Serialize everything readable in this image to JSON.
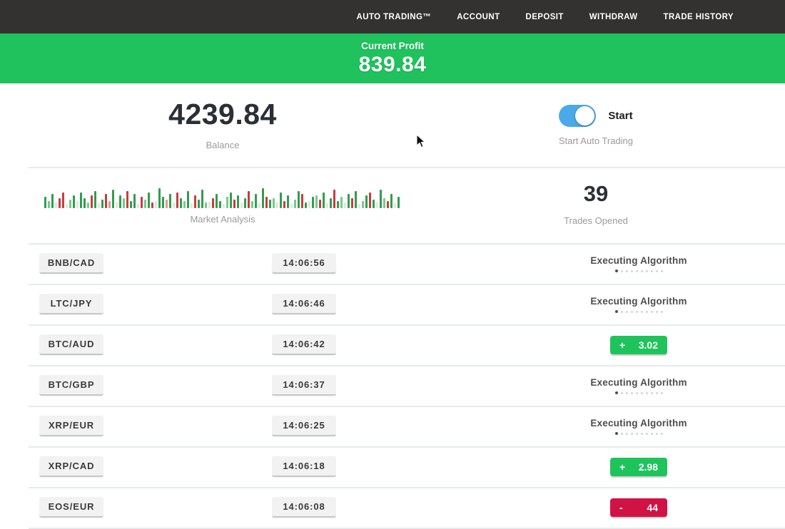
{
  "nav": {
    "items": [
      "AUTO TRADING™",
      "ACCOUNT",
      "DEPOSIT",
      "WITHDRAW",
      "TRADE HISTORY"
    ]
  },
  "profit_banner": {
    "label": "Current Profit",
    "value": "839.84",
    "bg_color": "#20c25e"
  },
  "stats": {
    "balance": {
      "value": "4239.84",
      "label": "Balance"
    },
    "auto_trading": {
      "state": "on",
      "toggle_label": "Start",
      "label": "Start Auto Trading",
      "toggle_color": "#4aa9e9"
    },
    "trades_opened": {
      "value": "39",
      "label": "Trades Opened"
    },
    "market_analysis": {
      "label": "Market Analysis",
      "palette": {
        "g": "#2f9e4c",
        "G": "#79c98c",
        "r": "#c63d3f",
        "R": "#e09a9a",
        "e": "#dfe8e0"
      },
      "bars": [
        "g:16",
        "G:10",
        "g:20",
        "e:8",
        "r:14",
        "r:22",
        "e:6",
        "G:12",
        "g:18",
        "e:10",
        "g:22",
        "g:14",
        "G:8",
        "r:18",
        "g:24",
        "e:7",
        "g:12",
        "r:20",
        "R:10",
        "g:26",
        "e:9",
        "g:18",
        "G:14",
        "r:24",
        "g:10",
        "g:20",
        "e:6",
        "r:16",
        "G:12",
        "g:22",
        "r:8",
        "e:10",
        "g:28",
        "g:16",
        "R:12",
        "g:20",
        "e:8",
        "r:22",
        "g:14",
        "G:10",
        "g:24",
        "e:7",
        "r:18",
        "g:12",
        "g:26",
        "G:8",
        "e:9",
        "r:14",
        "g:20",
        "g:10",
        "e:6",
        "G:16",
        "g:22",
        "r:12",
        "g:18",
        "e:8",
        "g:14",
        "r:24",
        "G:10",
        "g:20",
        "e:7",
        "g:28",
        "r:16",
        "g:12",
        "G:14",
        "e:9",
        "g:22",
        "r:10",
        "g:18",
        "e:6",
        "G:12",
        "g:24",
        "r:20",
        "g:8",
        "e:10",
        "g:16",
        "G:18",
        "r:12",
        "g:22",
        "e:7",
        "g:14",
        "r:26",
        "g:10",
        "G:16",
        "e:8",
        "g:20",
        "r:14",
        "g:24",
        "e:6",
        "G:10",
        "g:18",
        "r:22",
        "g:12",
        "e:9",
        "g:26",
        "G:14",
        "r:10",
        "g:20",
        "e:7",
        "g:16"
      ]
    }
  },
  "trades": [
    {
      "pair": "BNB/CAD",
      "time": "14:06:56",
      "status": "executing",
      "status_label": "Executing Algorithm",
      "progress_dots": {
        "count": 10,
        "active": 1
      }
    },
    {
      "pair": "LTC/JPY",
      "time": "14:06:46",
      "status": "executing",
      "status_label": "Executing Algorithm",
      "progress_dots": {
        "count": 10,
        "active": 1
      }
    },
    {
      "pair": "BTC/AUD",
      "time": "14:06:42",
      "status": "result",
      "result": {
        "sign": "+",
        "value": "3.02",
        "type": "profit"
      }
    },
    {
      "pair": "BTC/GBP",
      "time": "14:06:37",
      "status": "executing",
      "status_label": "Executing Algorithm",
      "progress_dots": {
        "count": 10,
        "active": 1
      }
    },
    {
      "pair": "XRP/EUR",
      "time": "14:06:25",
      "status": "executing",
      "status_label": "Executing Algorithm",
      "progress_dots": {
        "count": 10,
        "active": 1
      }
    },
    {
      "pair": "XRP/CAD",
      "time": "14:06:18",
      "status": "result",
      "result": {
        "sign": "+",
        "value": "2.98",
        "type": "profit"
      }
    },
    {
      "pair": "EOS/EUR",
      "time": "14:06:08",
      "status": "result",
      "result": {
        "sign": "-",
        "value": "44",
        "type": "loss"
      }
    }
  ],
  "colors": {
    "nav_bg": "#333231",
    "banner_green": "#20c25e",
    "profit_badge_green": "#1fc35c",
    "loss_badge_red": "#d01245",
    "toggle_blue": "#4aa9e9",
    "row_separator": "#e6ebec"
  }
}
